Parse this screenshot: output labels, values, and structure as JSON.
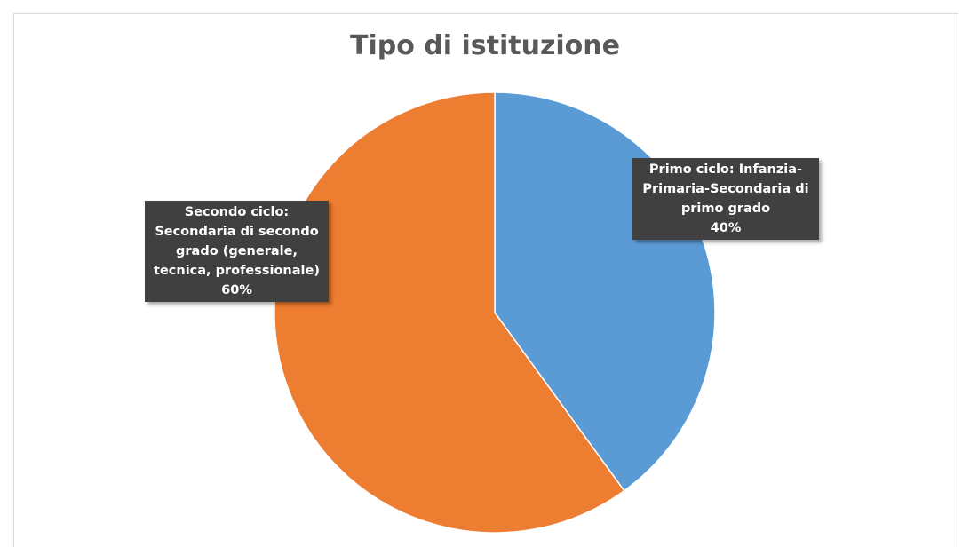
{
  "chart_data": {
    "type": "pie",
    "title": "Tipo di istituzione",
    "categories": [
      "Primo ciclo: Infanzia-Primaria-Secondaria di primo grado",
      "Secondo ciclo: Secondaria di secondo grado (generale, tecnica, professionale)"
    ],
    "values": [
      40,
      60
    ],
    "value_labels": [
      "40%",
      "60%"
    ],
    "colors": [
      "#5b9bd5",
      "#ed7d31"
    ]
  }
}
